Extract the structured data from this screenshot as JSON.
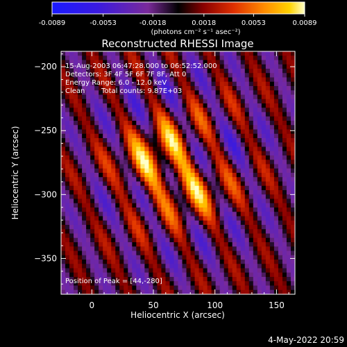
{
  "colorbar": {
    "tick_labels": [
      "-0.0089",
      "-0.0053",
      "-0.0018",
      "0.0018",
      "0.0053",
      "0.0089"
    ],
    "range": [
      -0.0089,
      0.0089
    ],
    "stops": [
      "#1a1aff",
      "#3a1ae0",
      "#7a2a9a",
      "#000000",
      "#8a0000",
      "#e03000",
      "#ff8c00",
      "#ffd200",
      "#ffffc8"
    ]
  },
  "chart_data": {
    "type": "heatmap",
    "title": "Reconstructed RHESSI Image",
    "xlabel": "Heliocentric X (arcsec)",
    "ylabel": "Heliocentric Y (arcsec)",
    "xlim": [
      -25,
      165
    ],
    "ylim": [
      -378,
      -188
    ],
    "x_ticks": [
      0,
      50,
      100,
      150
    ],
    "y_ticks": [
      -200,
      -250,
      -300,
      -350
    ],
    "x_tick_labels": [
      "0",
      "50",
      "100",
      "150"
    ],
    "y_tick_labels": [
      "−200",
      "−250",
      "−300",
      "−350"
    ],
    "colorbar_label": "(photons cm⁻² s⁻¹ asec⁻²)",
    "annotations": {
      "time": "15-Aug-2003 06:47:28.000 to 06:52:52.000",
      "detectors": "Detectors: 3F 4F 5F 6F 7F 8F, Att 0",
      "energy": "Energy Range: 6.0 - 12.0 keV",
      "clean": "Clean",
      "counts": "Total counts: 9.87E+03",
      "peak": "Position of Peak = [44,-280]"
    },
    "peak": {
      "x": 44,
      "y": -280
    }
  },
  "footer": {
    "date": "4-May-2022 20:59"
  }
}
